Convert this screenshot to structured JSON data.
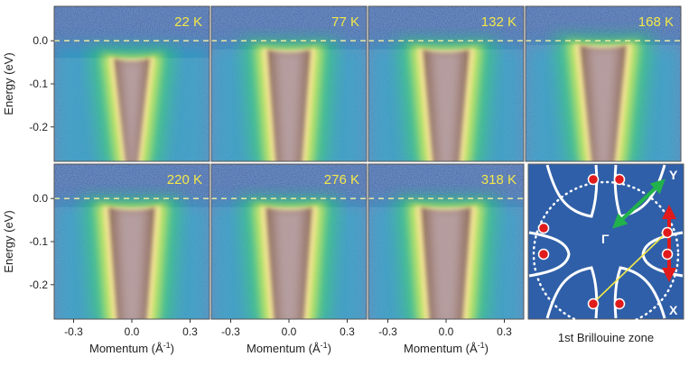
{
  "chart_data": {
    "type": "heatmap",
    "title": "",
    "xlabel": "Momentum (Å⁻¹)",
    "xlabel_parts": {
      "main": "Momentum",
      "open": "(Å",
      "exp": "-1",
      "close": ")"
    },
    "ylabel": "Energy (eV)",
    "xlim": [
      -0.4,
      0.4
    ],
    "ylim": [
      -0.28,
      0.08
    ],
    "xticks": [
      -0.3,
      0.0,
      0.3
    ],
    "xtick_labels": [
      "-0.3",
      "0.0",
      "0.3"
    ],
    "yticks": [
      0.0,
      -0.1,
      -0.2
    ],
    "ytick_labels": [
      "0.0",
      "-0.1",
      "-0.2"
    ],
    "fermi_level_ev": 0.0,
    "panels": [
      {
        "label": "22 K",
        "temperature_k": 22,
        "top_ev": -0.04,
        "top_halfwidth": 0.1,
        "bottom_halfwidth": 0.03
      },
      {
        "label": "77 K",
        "temperature_k": 77,
        "top_ev": -0.02,
        "top_halfwidth": 0.12,
        "bottom_halfwidth": 0.07
      },
      {
        "label": "132 K",
        "temperature_k": 132,
        "top_ev": -0.02,
        "top_halfwidth": 0.13,
        "bottom_halfwidth": 0.07
      },
      {
        "label": "168 K",
        "temperature_k": 168,
        "top_ev": -0.01,
        "top_halfwidth": 0.13,
        "bottom_halfwidth": 0.06
      },
      {
        "label": "220 K",
        "temperature_k": 220,
        "top_ev": -0.02,
        "top_halfwidth": 0.13,
        "bottom_halfwidth": 0.08
      },
      {
        "label": "276 K",
        "temperature_k": 276,
        "top_ev": -0.02,
        "top_halfwidth": 0.13,
        "bottom_halfwidth": 0.08
      },
      {
        "label": "318 K",
        "temperature_k": 318,
        "top_ev": -0.02,
        "top_halfwidth": 0.14,
        "bottom_halfwidth": 0.09
      }
    ],
    "colormap": [
      "#2f55a8",
      "#2e9bc2",
      "#33c07a",
      "#c9e45a",
      "#efe08a",
      "#8e6b5b",
      "#c9b8c6"
    ]
  },
  "bz_inset": {
    "caption": "1st Brillouine zone",
    "labels": {
      "gamma": "Γ",
      "y": "Y",
      "x": "X"
    },
    "colors": {
      "background": "#2f5fa8",
      "contour": "#ffffff",
      "point": "#e11b1b",
      "green_arrow": "#22b24c",
      "red_arrow": "#e11b1b",
      "yellow_arrow": "#f2e84a"
    }
  }
}
